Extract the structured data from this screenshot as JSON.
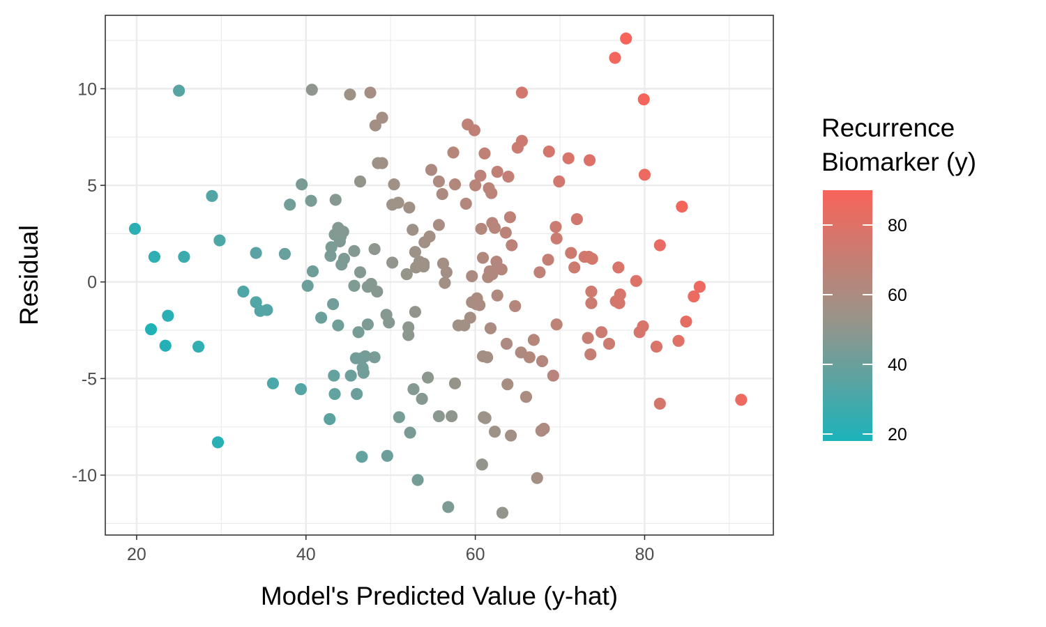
{
  "chart_data": {
    "type": "scatter",
    "title": "",
    "xlabel": "Model's Predicted Value (y-hat)",
    "ylabel": "Residual",
    "xlim": [
      16.3,
      95.2
    ],
    "ylim": [
      -13.1,
      13.8
    ],
    "x_ticks": [
      20,
      40,
      60,
      80
    ],
    "y_ticks": [
      -10,
      -5,
      0,
      5,
      10
    ],
    "x_tick_labels": [
      "20",
      "40",
      "60",
      "80"
    ],
    "y_tick_labels": [
      "-10",
      "-5",
      "0",
      "5",
      "10"
    ],
    "grid": true,
    "theme": "bw",
    "legend": {
      "title_lines": [
        "Recurrence",
        "Biomarker (y)"
      ],
      "type": "colorbar",
      "placement": "right",
      "range": [
        18,
        90
      ],
      "ticks": [
        20,
        40,
        60,
        80
      ],
      "tick_labels": [
        "20",
        "40",
        "60",
        "80"
      ],
      "low_color": "#1CB3BA",
      "mid_color": "#9C9388",
      "high_color": "#F8645A"
    },
    "points": [
      [
        19.8,
        2.75,
        22.6
      ],
      [
        22.1,
        1.3,
        23.4
      ],
      [
        21.7,
        -2.45,
        19.3
      ],
      [
        23.7,
        -1.75,
        22
      ],
      [
        23.4,
        -3.3,
        20
      ],
      [
        25.6,
        1.3,
        26.9
      ],
      [
        25.0,
        9.9,
        34.9
      ],
      [
        27.3,
        -3.35,
        24
      ],
      [
        28.9,
        4.45,
        33.4
      ],
      [
        29.8,
        2.15,
        32
      ],
      [
        29.6,
        -8.3,
        21.3
      ],
      [
        32.6,
        -0.5,
        32.1
      ],
      [
        34.1,
        1.5,
        35.6
      ],
      [
        34.1,
        -1.05,
        33.1
      ],
      [
        34.6,
        -1.5,
        33.1
      ],
      [
        35.4,
        -1.45,
        34
      ],
      [
        36.1,
        -5.25,
        30.9
      ],
      [
        37.5,
        1.45,
        39
      ],
      [
        38.1,
        4.0,
        42.1
      ],
      [
        39.5,
        5.05,
        44.5
      ],
      [
        39.4,
        -5.55,
        33.9
      ],
      [
        40.2,
        -0.2,
        40
      ],
      [
        40.6,
        4.2,
        44.8
      ],
      [
        40.8,
        0.55,
        41.4
      ],
      [
        40.7,
        9.95,
        50.6
      ],
      [
        41.8,
        -1.85,
        39.9
      ],
      [
        42.9,
        1.35,
        44.2
      ],
      [
        43.0,
        1.8,
        44.8
      ],
      [
        43.2,
        -1.15,
        42
      ],
      [
        43.5,
        4.25,
        47.7
      ],
      [
        43.4,
        2.45,
        45.9
      ],
      [
        43.8,
        2.8,
        46.6
      ],
      [
        44.0,
        2.1,
        46.1
      ],
      [
        44.1,
        2.35,
        46.5
      ],
      [
        44.4,
        2.6,
        47
      ],
      [
        43.8,
        -2.25,
        41.5
      ],
      [
        44.2,
        0.9,
        45.1
      ],
      [
        44.5,
        1.2,
        45.7
      ],
      [
        43.3,
        -4.85,
        38.4
      ],
      [
        43.4,
        -5.8,
        37.6
      ],
      [
        42.8,
        -7.1,
        35.7
      ],
      [
        45.2,
        9.7,
        54.9
      ],
      [
        45.7,
        1.6,
        47.3
      ],
      [
        45.7,
        -0.2,
        45.5
      ],
      [
        45.9,
        -3.95,
        41.9
      ],
      [
        46.0,
        -5.8,
        40.2
      ],
      [
        46.2,
        -2.6,
        43.6
      ],
      [
        46.4,
        0.5,
        46.9
      ],
      [
        46.4,
        5.2,
        51.6
      ],
      [
        45.3,
        -4.85,
        40.4
      ],
      [
        46.6,
        -3.95,
        42.6
      ],
      [
        46.7,
        -4.45,
        42.3
      ],
      [
        46.8,
        -4.7,
        42.1
      ],
      [
        47.0,
        -3.85,
        43.1
      ],
      [
        47.3,
        -2.2,
        45.1
      ],
      [
        47.3,
        -0.25,
        47
      ],
      [
        47.6,
        9.8,
        57.4
      ],
      [
        47.7,
        -0.1,
        47.6
      ],
      [
        48.1,
        -3.9,
        44.2
      ],
      [
        48.1,
        1.7,
        49.8
      ],
      [
        48.2,
        8.1,
        56.3
      ],
      [
        48.4,
        -0.5,
        47.9
      ],
      [
        48.5,
        6.15,
        54.6
      ],
      [
        49.0,
        8.5,
        57.5
      ],
      [
        49.0,
        6.15,
        55.2
      ],
      [
        46.6,
        -9.05,
        37.6
      ],
      [
        49.5,
        -1.7,
        47.8
      ],
      [
        49.6,
        -9.0,
        40.6
      ],
      [
        49.8,
        -2.1,
        47.7
      ],
      [
        50.2,
        1.0,
        51.2
      ],
      [
        50.2,
        4.0,
        54.2
      ],
      [
        50.4,
        5.05,
        55.5
      ],
      [
        50.9,
        4.1,
        55
      ],
      [
        51.0,
        -7.0,
        44
      ],
      [
        51.9,
        0.4,
        52.3
      ],
      [
        52.1,
        -2.35,
        49.8
      ],
      [
        52.1,
        -2.75,
        49.4
      ],
      [
        52.2,
        3.85,
        56.1
      ],
      [
        52.3,
        -7.8,
        44.5
      ],
      [
        52.6,
        2.7,
        55.3
      ],
      [
        52.7,
        -5.55,
        47.2
      ],
      [
        52.9,
        1.55,
        54.5
      ],
      [
        52.9,
        -1.55,
        51.4
      ],
      [
        53.0,
        0.75,
        53.8
      ],
      [
        53.2,
        -10.25,
        43
      ],
      [
        53.4,
        1.05,
        54.5
      ],
      [
        53.7,
        -6.05,
        47.7
      ],
      [
        53.9,
        0.95,
        54.9
      ],
      [
        53.9,
        0.8,
        54.7
      ],
      [
        54.0,
        2.05,
        56.1
      ],
      [
        54.4,
        -4.95,
        49.5
      ],
      [
        54.6,
        2.35,
        57
      ],
      [
        54.8,
        5.8,
        60.6
      ],
      [
        55.7,
        2.95,
        58.7
      ],
      [
        55.7,
        5.2,
        60.9
      ],
      [
        55.7,
        -6.95,
        48.8
      ],
      [
        56.1,
        4.55,
        60.7
      ],
      [
        56.2,
        0.95,
        57.2
      ],
      [
        56.4,
        -0.05,
        56.4
      ],
      [
        56.6,
        0.5,
        57.1
      ],
      [
        56.8,
        -11.65,
        45.2
      ],
      [
        57.2,
        -6.95,
        50.3
      ],
      [
        57.4,
        6.7,
        64.1
      ],
      [
        57.6,
        5.05,
        62.7
      ],
      [
        57.6,
        -5.25,
        52.4
      ],
      [
        58.0,
        -2.25,
        55.8
      ],
      [
        58.7,
        -2.25,
        56.5
      ],
      [
        58.9,
        4.05,
        63
      ],
      [
        59.1,
        8.15,
        67.3
      ],
      [
        59.4,
        -1.85,
        57.6
      ],
      [
        59.6,
        0.3,
        59.9
      ],
      [
        59.6,
        -1.05,
        58.6
      ],
      [
        59.9,
        7.85,
        67.8
      ],
      [
        60.0,
        5.0,
        65
      ],
      [
        60.1,
        -1.15,
        59
      ],
      [
        60.2,
        -0.85,
        59.4
      ],
      [
        60.5,
        -1.2,
        59.3
      ],
      [
        60.6,
        5.5,
        66.1
      ],
      [
        60.7,
        2.75,
        63.5
      ],
      [
        60.8,
        -9.45,
        51.4
      ],
      [
        60.9,
        -3.85,
        57.1
      ],
      [
        60.9,
        1.25,
        62.2
      ],
      [
        61.0,
        -7.0,
        54
      ],
      [
        61.1,
        6.65,
        67.8
      ],
      [
        61.2,
        -7.05,
        54.2
      ],
      [
        61.4,
        -3.9,
        57.5
      ],
      [
        61.5,
        0.25,
        61.8
      ],
      [
        61.6,
        4.85,
        66.5
      ],
      [
        61.7,
        0.55,
        62.3
      ],
      [
        61.8,
        -2.4,
        59.4
      ],
      [
        61.9,
        4.6,
        66.5
      ],
      [
        62.0,
        3.05,
        65.1
      ],
      [
        62.0,
        0.4,
        62.4
      ],
      [
        62.3,
        2.8,
        65.1
      ],
      [
        62.3,
        -7.75,
        54.6
      ],
      [
        62.5,
        1.05,
        63.6
      ],
      [
        62.6,
        5.7,
        68.3
      ],
      [
        62.6,
        0.75,
        63.4
      ],
      [
        62.6,
        -0.7,
        61.9
      ],
      [
        63.1,
        0.65,
        63.8
      ],
      [
        63.2,
        -11.95,
        51.3
      ],
      [
        63.6,
        2.55,
        66.2
      ],
      [
        63.7,
        -3.2,
        60.5
      ],
      [
        63.8,
        -5.3,
        58.5
      ],
      [
        63.9,
        5.45,
        69.4
      ],
      [
        64.1,
        3.35,
        67.5
      ],
      [
        64.2,
        -7.95,
        56.3
      ],
      [
        64.3,
        1.9,
        66.2
      ],
      [
        64.7,
        -1.25,
        63.5
      ],
      [
        65.0,
        6.95,
        72
      ],
      [
        65.4,
        -3.65,
        61.8
      ],
      [
        65.5,
        9.8,
        75.3
      ],
      [
        65.5,
        7.3,
        72.8
      ],
      [
        66.0,
        -5.95,
        60.1
      ],
      [
        66.4,
        -3.9,
        62.5
      ],
      [
        66.9,
        -3.0,
        63.9
      ],
      [
        67.3,
        -10.15,
        57.2
      ],
      [
        67.6,
        0.5,
        68.1
      ],
      [
        67.8,
        -7.7,
        60.1
      ],
      [
        67.9,
        -4.1,
        63.8
      ],
      [
        68.1,
        -7.6,
        60.5
      ],
      [
        68.6,
        1.15,
        69.8
      ],
      [
        68.7,
        6.75,
        75.5
      ],
      [
        69.2,
        -4.85,
        64.4
      ],
      [
        69.5,
        2.85,
        72.4
      ],
      [
        69.6,
        -2.2,
        67.4
      ],
      [
        69.6,
        2.25,
        71.9
      ],
      [
        69.9,
        5.2,
        75.1
      ],
      [
        71.0,
        6.4,
        77.4
      ],
      [
        71.3,
        1.5,
        72.8
      ],
      [
        71.7,
        0.75,
        72.5
      ],
      [
        72.0,
        3.25,
        75.3
      ],
      [
        72.9,
        1.3,
        74.2
      ],
      [
        73.3,
        -2.9,
        70.4
      ],
      [
        73.4,
        1.3,
        74.7
      ],
      [
        73.5,
        6.3,
        79.8
      ],
      [
        73.6,
        -3.75,
        69.9
      ],
      [
        73.7,
        -0.5,
        73.2
      ],
      [
        73.7,
        -1.1,
        72.6
      ],
      [
        73.8,
        1.2,
        75
      ],
      [
        74.9,
        -2.6,
        72.3
      ],
      [
        75.8,
        -3.2,
        72.6
      ],
      [
        76.5,
        11.6,
        88.1
      ],
      [
        76.6,
        -1.0,
        75.6
      ],
      [
        76.9,
        0.75,
        77.7
      ],
      [
        77.0,
        -1.1,
        75.9
      ],
      [
        77.1,
        -0.65,
        76.5
      ],
      [
        77.8,
        12.6,
        90.4
      ],
      [
        79.0,
        0.05,
        79
      ],
      [
        79.4,
        -2.6,
        76.8
      ],
      [
        79.8,
        -2.3,
        77.5
      ],
      [
        79.9,
        9.45,
        89.3
      ],
      [
        80.0,
        5.55,
        85.5
      ],
      [
        81.4,
        -3.35,
        78
      ],
      [
        81.8,
        1.9,
        83.7
      ],
      [
        81.8,
        -6.3,
        75.5
      ],
      [
        84.0,
        -3.05,
        81
      ],
      [
        84.4,
        3.9,
        88.3
      ],
      [
        84.9,
        -2.05,
        82.9
      ],
      [
        85.8,
        -0.75,
        85
      ],
      [
        86.5,
        -0.25,
        86.2
      ],
      [
        91.4,
        -6.1,
        85.3
      ]
    ]
  }
}
